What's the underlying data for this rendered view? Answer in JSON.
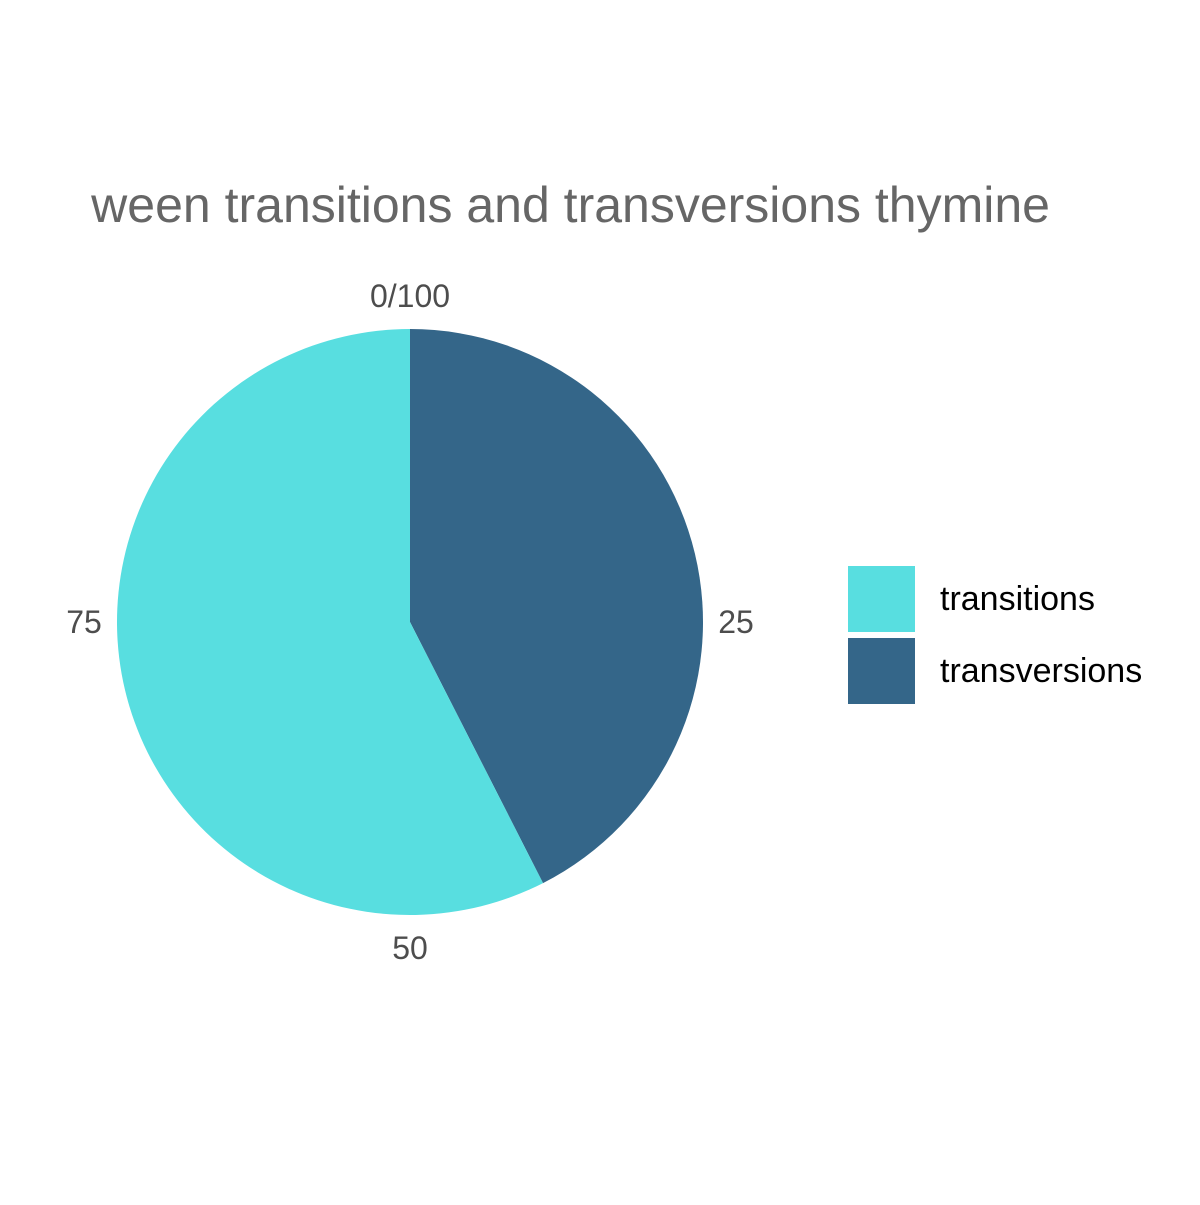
{
  "chart_data": {
    "type": "pie",
    "title": "ween transitions and transversions thymine",
    "categories": [
      "transitions",
      "transversions"
    ],
    "values": [
      57.5,
      42.5
    ],
    "axis": {
      "ticks": [
        0,
        25,
        50,
        75
      ],
      "tick_labels": [
        "0/100",
        "25",
        "50",
        "75"
      ],
      "range": [
        0,
        100
      ]
    },
    "legend": {
      "position": "right",
      "items": [
        "transitions",
        "transversions"
      ]
    },
    "grid": false
  },
  "colors": {
    "transitions": "#58DEE0",
    "transversions": "#346689",
    "title": "#666666",
    "tick_label": "#4D4D4D",
    "legend_text": "#000000",
    "background": "#FFFFFF"
  }
}
